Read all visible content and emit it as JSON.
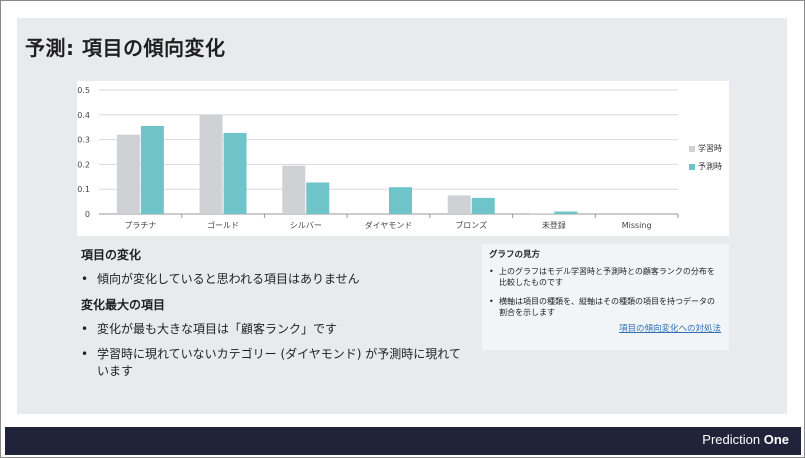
{
  "slide": {
    "title": "予測: 項目の傾向変化"
  },
  "chart_data": {
    "type": "bar",
    "categories": [
      "プラチナ",
      "ゴールド",
      "シルバー",
      "ダイヤモンド",
      "ブロンズ",
      "未登録",
      "Missing"
    ],
    "series": [
      {
        "name": "学習時",
        "values": [
          0.32,
          0.4,
          0.195,
          0.0,
          0.075,
          0.003,
          0.0
        ],
        "color": "#cfd1d4"
      },
      {
        "name": "予測時",
        "values": [
          0.355,
          0.327,
          0.127,
          0.108,
          0.065,
          0.01,
          0.0
        ],
        "color": "#6ec4c9"
      }
    ],
    "yticks": [
      "0",
      "0.1",
      "0.2",
      "0.3",
      "0.4",
      "0.5"
    ],
    "ylim": [
      0,
      0.5
    ],
    "grid": true,
    "legend": "right"
  },
  "left": {
    "heading1": "項目の変化",
    "bullet1": "傾向が変化していると思われる項目はありません",
    "heading2": "変化最大の項目",
    "bullet2": "変化が最も大きな項目は「顧客ランク」です",
    "bullet3": "学習時に現れていないカテゴリー (ダイヤモンド) が予測時に現れています",
    "bullet_char": "•"
  },
  "help": {
    "title": "グラフの見方",
    "item1": "上のグラフはモデル学習時と予測時との顧客ランクの分布を比較したものです",
    "item2": "横軸は項目の種類を、縦軸はその種類の項目を持つデータの割合を示します",
    "link": "項目の傾向変化への対処法"
  },
  "footer": {
    "brand_light": "Prediction ",
    "brand_bold": "One"
  }
}
